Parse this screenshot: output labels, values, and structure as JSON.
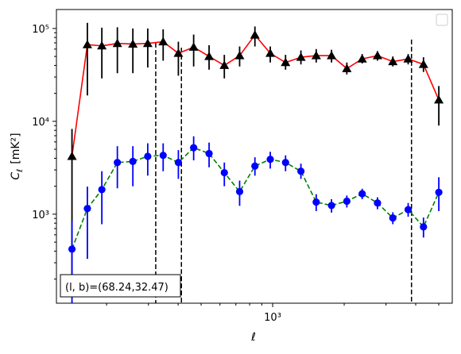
{
  "chart_data": {
    "type": "scatter",
    "title": "",
    "xlabel": "ℓ",
    "ylabel_main": "C",
    "ylabel_sub": "ℓ",
    "ylabel_unit": "[mK²]",
    "xscale": "log",
    "yscale": "log",
    "xlim": [
      123,
      5700
    ],
    "ylim": [
      110,
      160000
    ],
    "x_tick_labels": [
      {
        "value": 1000,
        "label": "10³"
      }
    ],
    "y_tick_labels": [
      {
        "value": 1000,
        "label": "10³"
      },
      {
        "value": 10000,
        "label": "10⁴"
      },
      {
        "value": 100000,
        "label": "10⁵"
      }
    ],
    "annotation": "(l, b)=(68.24,32.47)",
    "legend": {
      "placement": "upper right",
      "entries": []
    },
    "grid": false,
    "vlines": [
      {
        "x": 322,
        "ymin": 110,
        "ymax": 70000,
        "color": "#000000",
        "style": "dashed"
      },
      {
        "x": 413,
        "ymin": 110,
        "ymax": 62000,
        "color": "#000000",
        "style": "dashed"
      },
      {
        "x": 3840,
        "ymin": 110,
        "ymax": 76000,
        "color": "#000000",
        "style": "dashed"
      }
    ],
    "series": [
      {
        "color": "#ff0000",
        "marker_color": "#000000",
        "error_color": "#000000",
        "marker": "triangle",
        "line_style": "solid",
        "points": [
          {
            "x": 143,
            "y": 4200,
            "lo": 200,
            "hi": 8300
          },
          {
            "x": 166,
            "y": 67000,
            "lo": 19000,
            "hi": 115000
          },
          {
            "x": 191,
            "y": 65000,
            "lo": 29000,
            "hi": 102000
          },
          {
            "x": 222,
            "y": 69000,
            "lo": 33000,
            "hi": 103000
          },
          {
            "x": 258,
            "y": 68000,
            "lo": 33000,
            "hi": 100000
          },
          {
            "x": 298,
            "y": 69000,
            "lo": 38000,
            "hi": 100000
          },
          {
            "x": 346,
            "y": 72000,
            "lo": 45000,
            "hi": 98000
          },
          {
            "x": 401,
            "y": 54000,
            "lo": 31000,
            "hi": 72000
          },
          {
            "x": 465,
            "y": 63000,
            "lo": 39000,
            "hi": 86000
          },
          {
            "x": 540,
            "y": 50000,
            "lo": 36000,
            "hi": 66000
          },
          {
            "x": 626,
            "y": 40000,
            "lo": 29000,
            "hi": 52000
          },
          {
            "x": 726,
            "y": 51000,
            "lo": 39000,
            "hi": 64000
          },
          {
            "x": 842,
            "y": 85000,
            "lo": 64000,
            "hi": 105000
          },
          {
            "x": 977,
            "y": 54000,
            "lo": 43000,
            "hi": 64000
          },
          {
            "x": 1133,
            "y": 43000,
            "lo": 36000,
            "hi": 52000
          },
          {
            "x": 1315,
            "y": 49000,
            "lo": 41000,
            "hi": 58000
          },
          {
            "x": 1525,
            "y": 51000,
            "lo": 43000,
            "hi": 60000
          },
          {
            "x": 1769,
            "y": 51000,
            "lo": 43000,
            "hi": 59000
          },
          {
            "x": 2052,
            "y": 37000,
            "lo": 32000,
            "hi": 43000
          },
          {
            "x": 2381,
            "y": 47000,
            "lo": 42000,
            "hi": 53000
          },
          {
            "x": 2762,
            "y": 51000,
            "lo": 45000,
            "hi": 57000
          },
          {
            "x": 3205,
            "y": 44000,
            "lo": 39000,
            "hi": 50000
          },
          {
            "x": 3718,
            "y": 47000,
            "lo": 41000,
            "hi": 53000
          },
          {
            "x": 4313,
            "y": 41000,
            "lo": 34000,
            "hi": 49000
          },
          {
            "x": 5004,
            "y": 17000,
            "lo": 9000,
            "hi": 24000
          }
        ]
      },
      {
        "color": "#008000",
        "marker_color": "#0000ff",
        "error_color": "#0000ff",
        "marker": "circle",
        "line_style": "dashed",
        "points": [
          {
            "x": 143,
            "y": 420,
            "lo": 110,
            "hi": 850
          },
          {
            "x": 166,
            "y": 1150,
            "lo": 330,
            "hi": 1980
          },
          {
            "x": 191,
            "y": 1840,
            "lo": 780,
            "hi": 2900
          },
          {
            "x": 222,
            "y": 3600,
            "lo": 1900,
            "hi": 5400
          },
          {
            "x": 258,
            "y": 3700,
            "lo": 2000,
            "hi": 5400
          },
          {
            "x": 298,
            "y": 4200,
            "lo": 2600,
            "hi": 5800
          },
          {
            "x": 346,
            "y": 4300,
            "lo": 2900,
            "hi": 5800
          },
          {
            "x": 401,
            "y": 3600,
            "lo": 2400,
            "hi": 4900
          },
          {
            "x": 465,
            "y": 5200,
            "lo": 3800,
            "hi": 6900
          },
          {
            "x": 540,
            "y": 4500,
            "lo": 3200,
            "hi": 5900
          },
          {
            "x": 626,
            "y": 2800,
            "lo": 2000,
            "hi": 3600
          },
          {
            "x": 726,
            "y": 1750,
            "lo": 1230,
            "hi": 2300
          },
          {
            "x": 842,
            "y": 3300,
            "lo": 2600,
            "hi": 4100
          },
          {
            "x": 977,
            "y": 3900,
            "lo": 3100,
            "hi": 4700
          },
          {
            "x": 1133,
            "y": 3600,
            "lo": 2900,
            "hi": 4300
          },
          {
            "x": 1315,
            "y": 2900,
            "lo": 2400,
            "hi": 3500
          },
          {
            "x": 1525,
            "y": 1350,
            "lo": 1080,
            "hi": 1640
          },
          {
            "x": 1769,
            "y": 1240,
            "lo": 1040,
            "hi": 1450
          },
          {
            "x": 2052,
            "y": 1380,
            "lo": 1180,
            "hi": 1590
          },
          {
            "x": 2381,
            "y": 1660,
            "lo": 1450,
            "hi": 1880
          },
          {
            "x": 2762,
            "y": 1320,
            "lo": 1130,
            "hi": 1520
          },
          {
            "x": 3205,
            "y": 910,
            "lo": 780,
            "hi": 1050
          },
          {
            "x": 3718,
            "y": 1120,
            "lo": 940,
            "hi": 1320
          },
          {
            "x": 4313,
            "y": 730,
            "lo": 560,
            "hi": 920
          },
          {
            "x": 5004,
            "y": 1720,
            "lo": 1080,
            "hi": 2500
          }
        ]
      }
    ]
  }
}
